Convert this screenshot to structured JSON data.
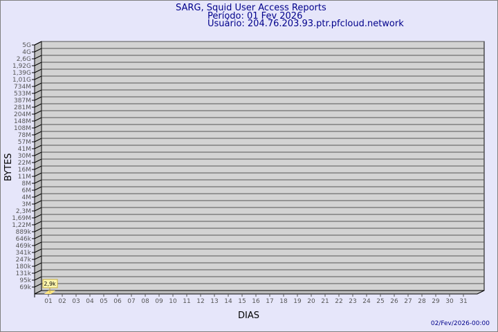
{
  "chart_data": {
    "type": "bar",
    "title": "SARG, Squid User Access Reports",
    "subtitle_period": "Período: 01 Fev 2026",
    "subtitle_user": "Usuário: 204.76.203.93.ptr.pfcloud.network",
    "xlabel": "DIAS",
    "ylabel": "BYTES",
    "y_scale": "log",
    "y_ticks": [
      "5G",
      "4G",
      "2,6G",
      "1,92G",
      "1,39G",
      "1,01G",
      "734M",
      "533M",
      "387M",
      "281M",
      "204M",
      "148M",
      "108M",
      "78M",
      "57M",
      "41M",
      "30M",
      "22M",
      "16M",
      "11M",
      "8M",
      "6M",
      "4M",
      "3M",
      "2,3M",
      "1,69M",
      "1,22M",
      "889k",
      "646k",
      "469k",
      "341k",
      "247k",
      "180k",
      "131k",
      "95k",
      "69k"
    ],
    "categories": [
      "01",
      "02",
      "03",
      "04",
      "05",
      "06",
      "07",
      "08",
      "09",
      "10",
      "11",
      "12",
      "13",
      "14",
      "15",
      "16",
      "17",
      "18",
      "19",
      "20",
      "21",
      "22",
      "23",
      "24",
      "25",
      "26",
      "27",
      "28",
      "29",
      "30",
      "31"
    ],
    "values": [
      2900,
      null,
      null,
      null,
      null,
      null,
      null,
      null,
      null,
      null,
      null,
      null,
      null,
      null,
      null,
      null,
      null,
      null,
      null,
      null,
      null,
      null,
      null,
      null,
      null,
      null,
      null,
      null,
      null,
      null,
      null
    ],
    "data_labels": [
      "2,9k"
    ],
    "grid": true,
    "colors": {
      "bar": "#ffe680",
      "wall": "#d3d3d3",
      "side": "#bdbdbd",
      "title": "#00008b"
    }
  },
  "footer": {
    "timestamp": "02/Fev/2026-00:00"
  }
}
